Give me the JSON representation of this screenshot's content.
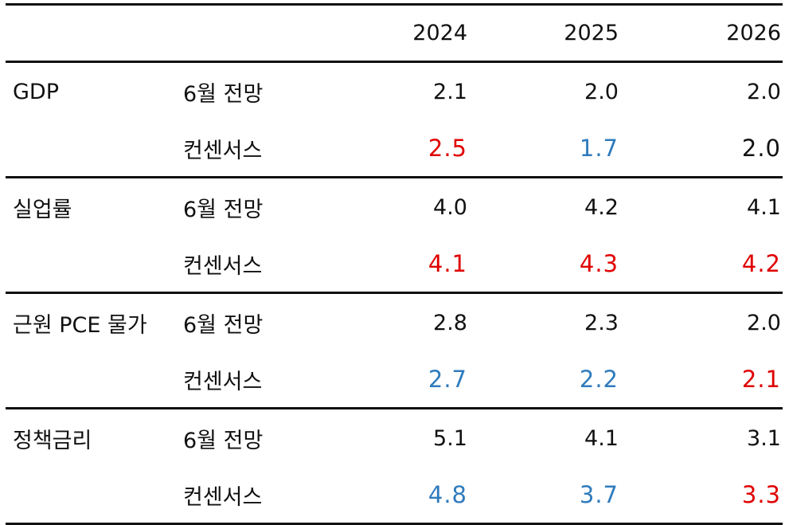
{
  "header": {
    "years": [
      "2024",
      "2025",
      "2026"
    ]
  },
  "colors": {
    "higher": "#e00000",
    "lower": "#2f7bbd",
    "same": "#111111"
  },
  "rows": [
    {
      "indicator": "GDP",
      "forecast": {
        "label": "6월 전망",
        "values": [
          "2.1",
          "2.0",
          "2.0"
        ]
      },
      "consensus": {
        "label": "컨센서스",
        "values": [
          "2.5",
          "1.7",
          "2.0"
        ],
        "tones": [
          "higher",
          "lower",
          "same"
        ]
      }
    },
    {
      "indicator": "실업률",
      "forecast": {
        "label": "6월 전망",
        "values": [
          "4.0",
          "4.2",
          "4.1"
        ]
      },
      "consensus": {
        "label": "컨센서스",
        "values": [
          "4.1",
          "4.3",
          "4.2"
        ],
        "tones": [
          "higher",
          "higher",
          "higher"
        ]
      }
    },
    {
      "indicator": "근원 PCE 물가",
      "forecast": {
        "label": "6월 전망",
        "values": [
          "2.8",
          "2.3",
          "2.0"
        ]
      },
      "consensus": {
        "label": "컨센서스",
        "values": [
          "2.7",
          "2.2",
          "2.1"
        ],
        "tones": [
          "lower",
          "lower",
          "higher"
        ]
      }
    },
    {
      "indicator": "정책금리",
      "forecast": {
        "label": "6월 전망",
        "values": [
          "5.1",
          "4.1",
          "3.1"
        ]
      },
      "consensus": {
        "label": "컨센서스",
        "values": [
          "4.8",
          "3.7",
          "3.3"
        ],
        "tones": [
          "lower",
          "lower",
          "higher"
        ]
      }
    }
  ]
}
